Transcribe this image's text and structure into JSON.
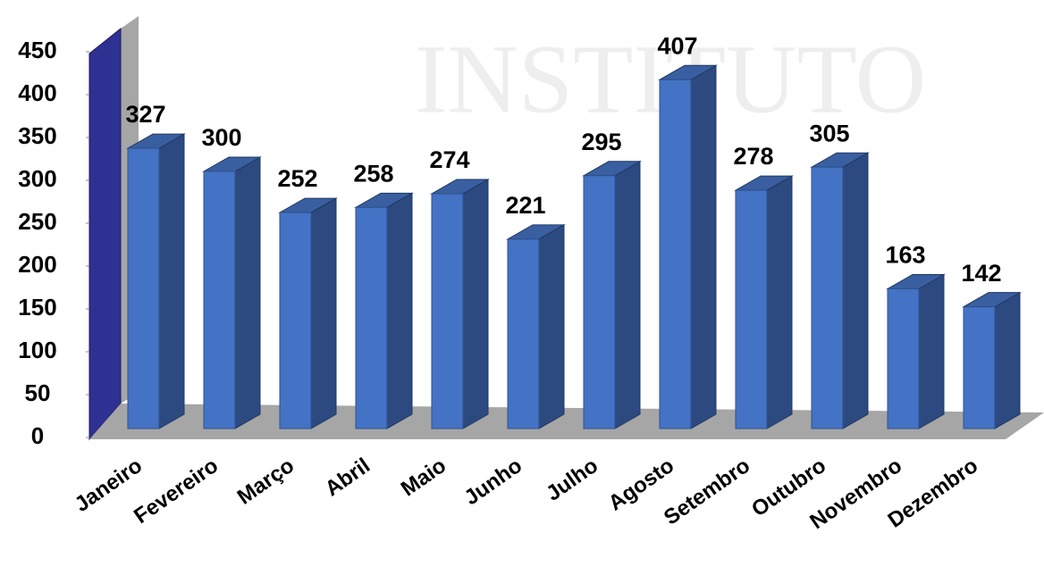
{
  "chart_data": {
    "type": "bar3d",
    "watermark": "INSTITUTO",
    "categories": [
      "Janeiro",
      "Fevereiro",
      "Março",
      "Abril",
      "Maio",
      "Junho",
      "Julho",
      "Agosto",
      "Setembro",
      "Outubro",
      "Novembro",
      "Dezembro"
    ],
    "values": [
      327,
      300,
      252,
      258,
      274,
      221,
      295,
      407,
      278,
      305,
      163,
      142
    ],
    "color": "#4472c4",
    "ylim": [
      0,
      450
    ],
    "yticks": [
      0,
      50,
      100,
      150,
      200,
      250,
      300,
      350,
      400,
      450
    ],
    "grid": false
  }
}
